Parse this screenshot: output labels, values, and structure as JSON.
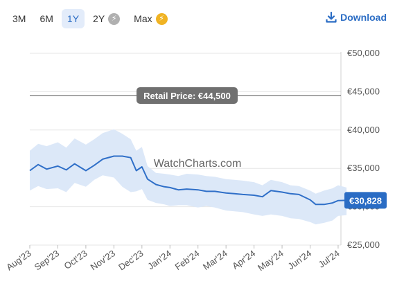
{
  "toolbar": {
    "tabs": [
      {
        "label": "3M",
        "active": false,
        "premium": false
      },
      {
        "label": "6M",
        "active": false,
        "premium": false
      },
      {
        "label": "1Y",
        "active": true,
        "premium": false
      },
      {
        "label": "2Y",
        "active": false,
        "premium": true,
        "badge_icon": "bolt-icon",
        "badge_color": "#b0b0b0"
      },
      {
        "label": "Max",
        "active": false,
        "premium": true,
        "badge_icon": "bolt-icon",
        "badge_color": "#f0b323"
      }
    ],
    "download_label": "Download",
    "download_icon": "download-icon"
  },
  "colors": {
    "accent": "#2a6cc4",
    "line": "#2f6fc8",
    "band": "#dce8f8",
    "reference_line": "#666666",
    "tooltip_bg": "#707070"
  },
  "chart_data": {
    "type": "line",
    "x_ticks": [
      "Aug'23",
      "Sep'23",
      "Oct'23",
      "Nov'23",
      "Dec'23",
      "Jan'24",
      "Feb'24",
      "Mar'24",
      "Apr'24",
      "May'24",
      "Jun'24",
      "Jul'24"
    ],
    "y_ticks": [
      "€25,000",
      "€30,000",
      "€35,000",
      "€40,000",
      "€45,000",
      "€50,000"
    ],
    "ylim": [
      25000,
      50000
    ],
    "watermark": "WatchCharts.com",
    "reference_line": {
      "value": 44500,
      "label": "Retail Price: €44,500"
    },
    "last_value_label": "€30,828",
    "grid": true,
    "x": [
      0,
      0.3,
      0.6,
      1,
      1.3,
      1.6,
      2,
      2.3,
      2.6,
      3,
      3.3,
      3.6,
      3.8,
      4,
      4.2,
      4.5,
      4.8,
      5,
      5.3,
      5.6,
      6,
      6.3,
      6.6,
      7,
      7.3,
      7.6,
      8,
      8.3,
      8.6,
      9,
      9.3,
      9.6,
      10,
      10.2,
      10.5,
      10.8,
      11,
      11.3
    ],
    "series": [
      {
        "values": [
          34700,
          35500,
          34900,
          35300,
          34800,
          35600,
          34700,
          35400,
          36200,
          36600,
          36600,
          36400,
          34700,
          35200,
          33600,
          32900,
          32600,
          32500,
          32200,
          32300,
          32200,
          32000,
          32000,
          31800,
          31700,
          31600,
          31500,
          31300,
          32100,
          31900,
          31700,
          31600,
          30900,
          30300,
          30300,
          30500,
          30800,
          30828
        ],
        "band_upper": [
          37300,
          38200,
          37900,
          38400,
          37700,
          38900,
          38100,
          38800,
          39600,
          40100,
          39500,
          38800,
          37300,
          37800,
          35300,
          34400,
          34300,
          34200,
          34000,
          34300,
          34200,
          34000,
          33900,
          33600,
          33500,
          33400,
          33200,
          32800,
          33500,
          33200,
          32800,
          32700,
          32100,
          31700,
          32100,
          32400,
          32800,
          32500
        ],
        "band_lower": [
          32100,
          32700,
          32300,
          32400,
          31900,
          33100,
          32600,
          33500,
          34100,
          33800,
          32600,
          31900,
          32000,
          32300,
          30900,
          30500,
          30300,
          30100,
          30200,
          30200,
          29900,
          30100,
          29900,
          29500,
          29400,
          29300,
          29000,
          28800,
          29000,
          28800,
          28500,
          28400,
          28000,
          27700,
          27900,
          28200,
          28800,
          28900
        ]
      }
    ]
  }
}
